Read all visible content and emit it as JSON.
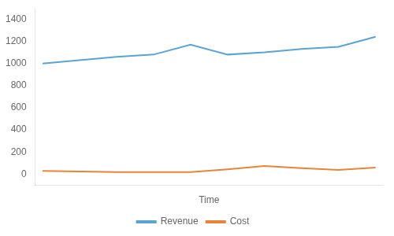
{
  "chart_data": {
    "type": "line",
    "x": [
      0,
      1,
      2,
      3,
      4,
      5,
      6,
      7,
      8,
      9
    ],
    "series": [
      {
        "name": "Revenue",
        "color": "#5BA3D0",
        "values": [
          1000,
          1030,
          1060,
          1080,
          1170,
          1080,
          1100,
          1130,
          1150,
          1240
        ]
      },
      {
        "name": "Cost",
        "color": "#E8843A",
        "values": [
          30,
          25,
          20,
          20,
          20,
          45,
          75,
          55,
          40,
          60
        ]
      }
    ],
    "xlabel": "Time",
    "xlim": [
      -0.2,
      9.2
    ],
    "ylim": [
      -100,
      1500
    ],
    "yticks": [
      0,
      200,
      400,
      600,
      800,
      1000,
      1200,
      1400
    ],
    "grid": false,
    "legend": "bottom",
    "tick_labels": "y"
  }
}
